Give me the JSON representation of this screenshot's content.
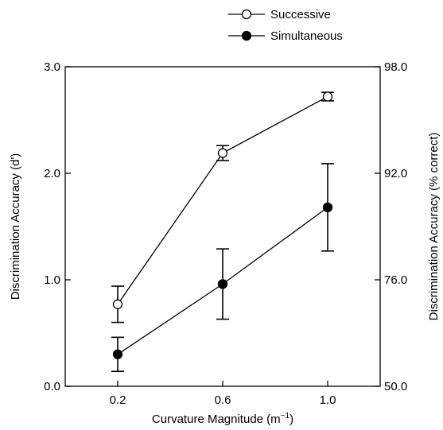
{
  "chart_data": {
    "type": "line",
    "title": "",
    "xlabel": "Curvature Magnitude (m",
    "xlabel_sup": "−1",
    "xlabel_close": ")",
    "ylabel": "Discrimination Accuracy (d')",
    "y2label": "Discrimination Accuracy (% correct)",
    "x": [
      0.2,
      0.6,
      1.0
    ],
    "x_tick_labels": [
      "0.2",
      "0.6",
      "1.0"
    ],
    "xlim": [
      0.0,
      1.2
    ],
    "ylim": [
      0.0,
      3.0
    ],
    "y_ticks": [
      0.0,
      1.0,
      2.0,
      3.0
    ],
    "y_tick_labels": [
      "0.0",
      "1.0",
      "2.0",
      "3.0"
    ],
    "y2_tick_positions": [
      0.0,
      1.0,
      2.0,
      3.0
    ],
    "y2_tick_labels": [
      "50.0",
      "76.0",
      "92.0",
      "98.0"
    ],
    "grid": false,
    "legend_position": "top-right",
    "series": [
      {
        "name": "Successive",
        "marker": "open-circle",
        "values": [
          0.77,
          2.19,
          2.72
        ],
        "errors": [
          0.17,
          0.07,
          0.04
        ]
      },
      {
        "name": "Simultaneous",
        "marker": "filled-circle",
        "values": [
          0.3,
          0.96,
          1.68
        ],
        "errors": [
          0.16,
          0.33,
          0.41
        ]
      }
    ]
  }
}
